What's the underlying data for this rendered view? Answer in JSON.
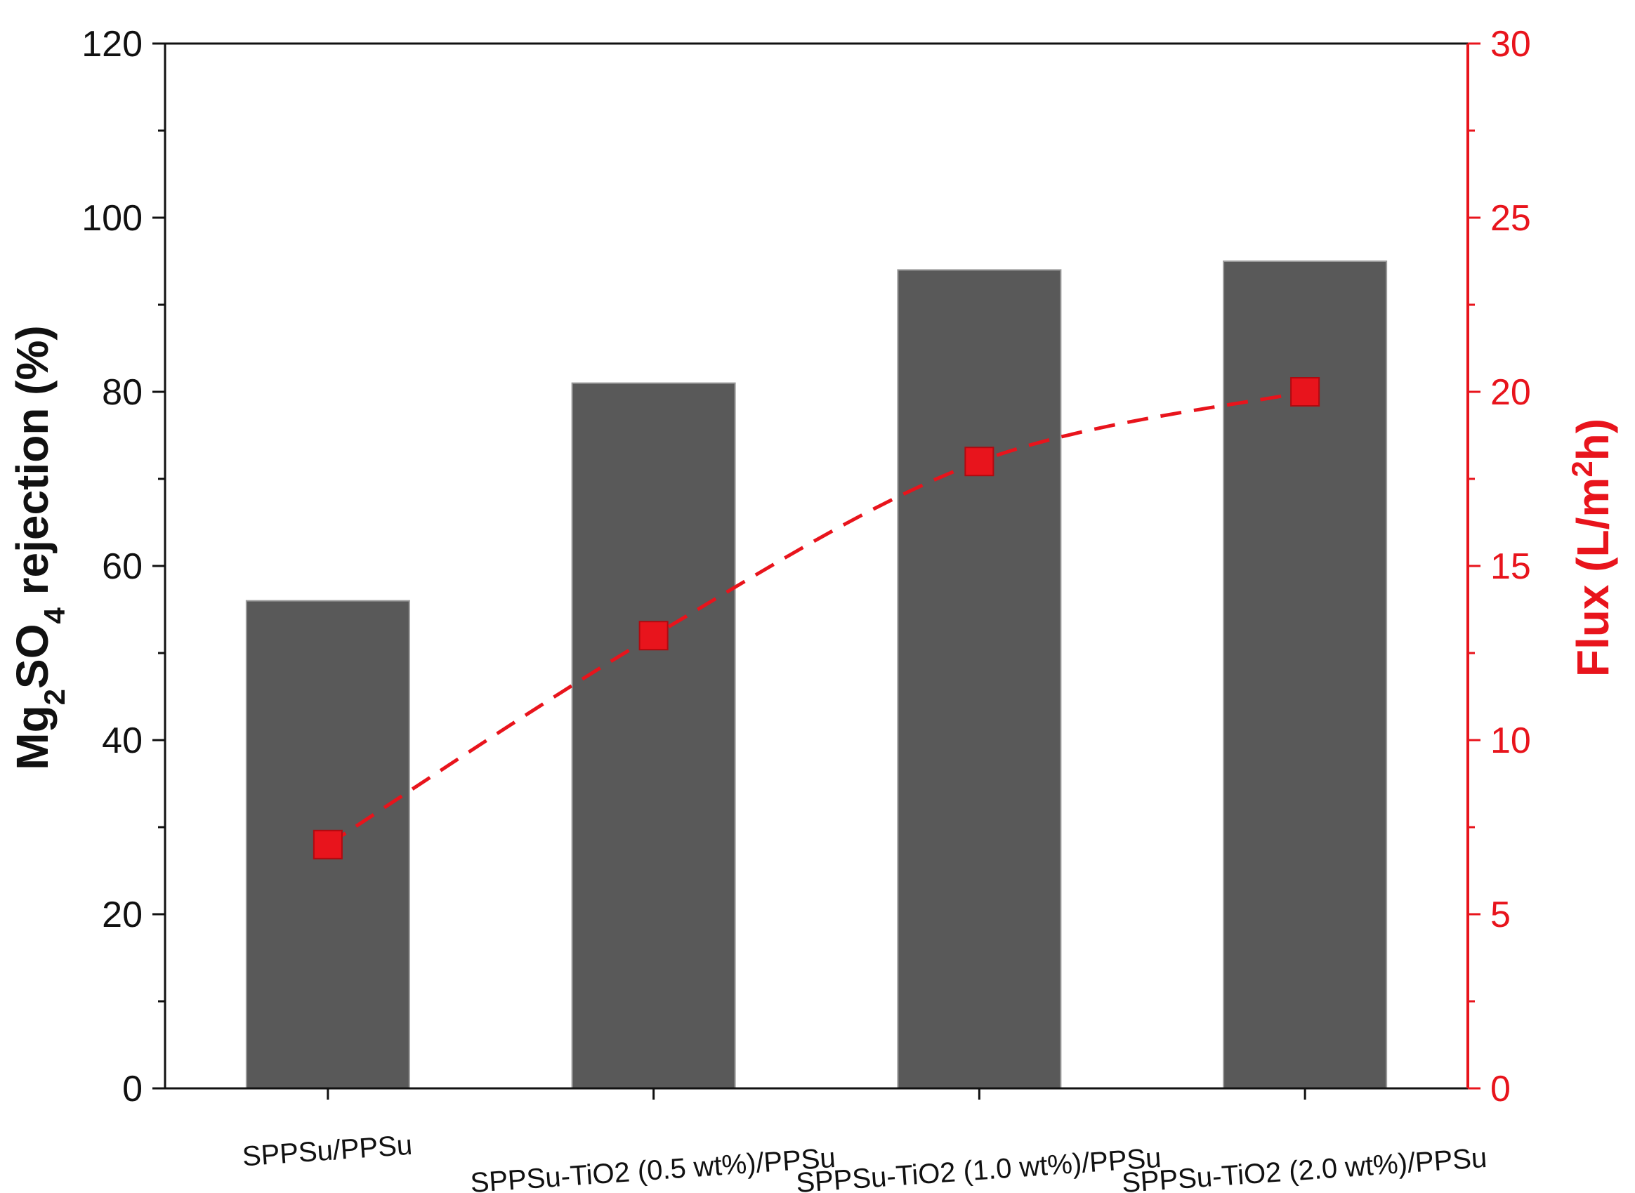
{
  "chart_data": {
    "type": "bar",
    "categories": [
      "SPPSu/PPSu",
      "SPPSu-TiO2 (0.5 wt%)/PPSu",
      "SPPSu-TiO2 (1.0 wt%)/PPSu",
      "SPPSu-TiO2 (2.0 wt%)/PPSu"
    ],
    "series": [
      {
        "name": "",
        "type": "bar",
        "axis": "left",
        "values": [
          56,
          81,
          94,
          95
        ],
        "color": "#595959"
      },
      {
        "name": "",
        "type": "line",
        "axis": "right",
        "values": [
          7,
          13,
          18,
          20
        ],
        "color": "#e8141c",
        "line_style": "dashed",
        "marker": "square"
      }
    ],
    "ylabel_left": {
      "prefix": "Mg",
      "sub1": "2",
      "mid": "SO",
      "sub2": "4",
      "suffix": " rejection (%)"
    },
    "ylabel_right": {
      "prefix": "Flux (L/m",
      "sup": "2",
      "suffix": "h)"
    },
    "ylim_left": [
      0,
      120
    ],
    "yticks_left": [
      0,
      20,
      40,
      60,
      80,
      100,
      120
    ],
    "ylim_right": [
      0,
      30
    ],
    "yticks_right": [
      0,
      5,
      10,
      15,
      20,
      25,
      30
    ],
    "grid": false,
    "legend": "none",
    "axis_colors": {
      "left": "#111111",
      "right": "#e8141c"
    }
  }
}
